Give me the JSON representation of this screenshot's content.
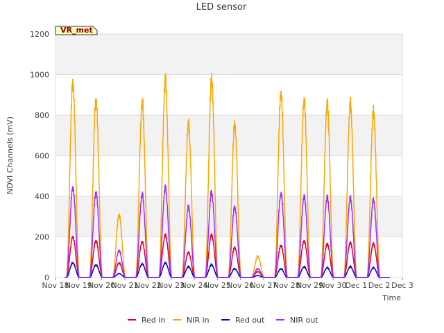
{
  "chart_data": {
    "type": "line",
    "title": "LED sensor",
    "xlabel": "Time",
    "ylabel": "NDVI Channels (mV)",
    "ylim": [
      0,
      1200
    ],
    "yticks": [
      0,
      200,
      400,
      600,
      800,
      1000,
      1200
    ],
    "xlim": [
      0,
      15
    ],
    "x_tick_labels": [
      "Nov 18",
      "Nov 19",
      "Nov 20",
      "Nov 21",
      "Nov 22",
      "Nov 23",
      "Nov 24",
      "Nov 25",
      "Nov 26",
      "Nov 27",
      "Nov 28",
      "Nov 29",
      "Nov 30",
      "Dec 1",
      "Dec 2",
      "Dec 3"
    ],
    "grid": true,
    "legend_position": "bottom-center",
    "badge": "VR_met",
    "day_offsets": [
      0.75,
      1.75,
      2.75,
      3.75,
      4.75,
      5.75,
      6.75,
      7.75,
      8.75,
      9.75,
      10.75,
      11.75,
      12.75,
      13.75
    ],
    "series": [
      {
        "name": "Red in",
        "color": "#e8001c",
        "daily_peaks": [
          210,
          190,
          75,
          185,
          220,
          130,
          220,
          155,
          30,
          165,
          190,
          175,
          180,
          175
        ]
      },
      {
        "name": "NIR in",
        "color": "#ffa500",
        "daily_peaks": [
          1005,
          920,
          325,
          905,
          1020,
          790,
          1020,
          790,
          110,
          955,
          915,
          900,
          895,
          855
        ]
      },
      {
        "name": "Red out",
        "color": "#0000dd",
        "daily_peaks": [
          75,
          65,
          20,
          70,
          75,
          55,
          65,
          45,
          10,
          45,
          55,
          50,
          55,
          50
        ]
      },
      {
        "name": "NIR out",
        "color": "#9b30ff",
        "daily_peaks": [
          465,
          440,
          140,
          430,
          465,
          365,
          440,
          365,
          45,
          435,
          420,
          415,
          410,
          400
        ]
      }
    ]
  }
}
